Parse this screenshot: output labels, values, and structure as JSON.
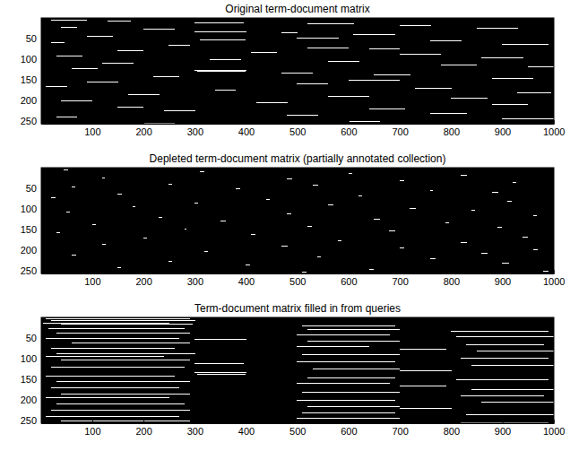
{
  "chart_data": [
    {
      "type": "heatmap",
      "title": "Original term-document matrix",
      "color": "#ffffff",
      "xlim": [
        0.5,
        1000.5
      ],
      "xticks": [
        100,
        200,
        300,
        400,
        500,
        600,
        700,
        800,
        900,
        1000
      ],
      "ylim": [
        0.5,
        256.5
      ],
      "yticks": [
        50,
        100,
        150,
        200,
        250
      ],
      "segments": [
        [
          5,
          20,
          90
        ],
        [
          8,
          130,
          175
        ],
        [
          12,
          300,
          395
        ],
        [
          14,
          520,
          610
        ],
        [
          18,
          700,
          760
        ],
        [
          22,
          40,
          70
        ],
        [
          25,
          850,
          930
        ],
        [
          28,
          200,
          260
        ],
        [
          33,
          300,
          400
        ],
        [
          36,
          470,
          500
        ],
        [
          40,
          610,
          690
        ],
        [
          44,
          90,
          140
        ],
        [
          48,
          500,
          580
        ],
        [
          52,
          310,
          398
        ],
        [
          55,
          760,
          820
        ],
        [
          60,
          20,
          45
        ],
        [
          63,
          900,
          990
        ],
        [
          67,
          250,
          290
        ],
        [
          72,
          520,
          600
        ],
        [
          75,
          640,
          700
        ],
        [
          80,
          150,
          200
        ],
        [
          84,
          410,
          460
        ],
        [
          88,
          700,
          780
        ],
        [
          92,
          30,
          80
        ],
        [
          96,
          860,
          940
        ],
        [
          101,
          330,
          390
        ],
        [
          105,
          560,
          620
        ],
        [
          110,
          120,
          180
        ],
        [
          114,
          780,
          850
        ],
        [
          118,
          950,
          1000
        ],
        [
          122,
          60,
          110
        ],
        [
          126,
          300,
          400
        ],
        [
          130,
          305,
          398
        ],
        [
          134,
          470,
          530
        ],
        [
          138,
          650,
          720
        ],
        [
          142,
          220,
          270
        ],
        [
          146,
          880,
          960
        ],
        [
          150,
          600,
          700
        ],
        [
          155,
          90,
          150
        ],
        [
          160,
          500,
          560
        ],
        [
          165,
          10,
          50
        ],
        [
          170,
          730,
          800
        ],
        [
          175,
          340,
          380
        ],
        [
          180,
          930,
          995
        ],
        [
          185,
          170,
          230
        ],
        [
          190,
          560,
          640
        ],
        [
          195,
          800,
          870
        ],
        [
          200,
          40,
          100
        ],
        [
          205,
          420,
          480
        ],
        [
          210,
          880,
          950
        ],
        [
          215,
          150,
          200
        ],
        [
          220,
          640,
          710
        ],
        [
          225,
          240,
          300
        ],
        [
          230,
          760,
          830
        ],
        [
          235,
          480,
          540
        ],
        [
          240,
          30,
          70
        ],
        [
          245,
          900,
          1000
        ],
        [
          250,
          600,
          660
        ],
        [
          254,
          200,
          260
        ]
      ]
    },
    {
      "type": "heatmap",
      "title": "Depleted term-document matrix (partially annotated collection)",
      "color": "#ffffff",
      "xlim": [
        0.5,
        1000.5
      ],
      "xticks": [
        100,
        200,
        300,
        400,
        500,
        600,
        700,
        800,
        900,
        1000
      ],
      "ylim": [
        0.5,
        256.5
      ],
      "yticks": [
        50,
        100,
        150,
        200,
        250
      ],
      "segments": [
        [
          6,
          45,
          52
        ],
        [
          10,
          310,
          318
        ],
        [
          15,
          600,
          606
        ],
        [
          19,
          820,
          830
        ],
        [
          24,
          120,
          124
        ],
        [
          27,
          480,
          490
        ],
        [
          31,
          700,
          708
        ],
        [
          35,
          920,
          926
        ],
        [
          39,
          250,
          256
        ],
        [
          43,
          530,
          540
        ],
        [
          47,
          60,
          66
        ],
        [
          51,
          380,
          388
        ],
        [
          56,
          760,
          764
        ],
        [
          59,
          880,
          892
        ],
        [
          64,
          150,
          158
        ],
        [
          68,
          620,
          626
        ],
        [
          73,
          20,
          28
        ],
        [
          77,
          440,
          446
        ],
        [
          81,
          910,
          918
        ],
        [
          86,
          300,
          306
        ],
        [
          90,
          560,
          570
        ],
        [
          95,
          180,
          184
        ],
        [
          99,
          720,
          730
        ],
        [
          103,
          840,
          846
        ],
        [
          108,
          50,
          56
        ],
        [
          112,
          480,
          488
        ],
        [
          116,
          960,
          966
        ],
        [
          121,
          230,
          236
        ],
        [
          125,
          650,
          660
        ],
        [
          129,
          350,
          360
        ],
        [
          133,
          790,
          796
        ],
        [
          137,
          100,
          106
        ],
        [
          141,
          520,
          528
        ],
        [
          145,
          890,
          898
        ],
        [
          149,
          280,
          284
        ],
        [
          153,
          680,
          690
        ],
        [
          158,
          30,
          36
        ],
        [
          162,
          410,
          418
        ],
        [
          167,
          940,
          950
        ],
        [
          171,
          200,
          206
        ],
        [
          176,
          580,
          586
        ],
        [
          181,
          820,
          830
        ],
        [
          186,
          120,
          126
        ],
        [
          190,
          470,
          480
        ],
        [
          194,
          700,
          708
        ],
        [
          199,
          960,
          968
        ],
        [
          203,
          320,
          326
        ],
        [
          207,
          860,
          870
        ],
        [
          212,
          60,
          68
        ],
        [
          216,
          540,
          546
        ],
        [
          221,
          760,
          770
        ],
        [
          226,
          250,
          256
        ],
        [
          231,
          900,
          912
        ],
        [
          236,
          400,
          408
        ],
        [
          241,
          150,
          156
        ],
        [
          246,
          640,
          648
        ],
        [
          250,
          980,
          990
        ],
        [
          253,
          510,
          518
        ]
      ]
    },
    {
      "type": "heatmap",
      "title": "Term-document matrix filled in from queries",
      "color": "#ffffff",
      "xlim": [
        0.5,
        1000.5
      ],
      "xticks": [
        100,
        200,
        300,
        400,
        500,
        600,
        700,
        800,
        900,
        1000
      ],
      "ylim": [
        0.5,
        256.5
      ],
      "yticks": [
        50,
        100,
        150,
        200,
        250
      ],
      "segments": [
        [
          4,
          10,
          290
        ],
        [
          8,
          20,
          300
        ],
        [
          13,
          5,
          250
        ],
        [
          17,
          40,
          295
        ],
        [
          21,
          510,
          690
        ],
        [
          26,
          15,
          280
        ],
        [
          30,
          520,
          700
        ],
        [
          34,
          800,
          990
        ],
        [
          38,
          30,
          290
        ],
        [
          42,
          500,
          680
        ],
        [
          46,
          810,
          1000
        ],
        [
          50,
          10,
          270
        ],
        [
          54,
          300,
          400
        ],
        [
          58,
          520,
          700
        ],
        [
          62,
          60,
          290
        ],
        [
          66,
          830,
          980
        ],
        [
          70,
          500,
          640
        ],
        [
          74,
          20,
          260
        ],
        [
          78,
          700,
          790
        ],
        [
          82,
          850,
          1000
        ],
        [
          87,
          30,
          300
        ],
        [
          91,
          510,
          700
        ],
        [
          95,
          10,
          240
        ],
        [
          99,
          820,
          990
        ],
        [
          103,
          40,
          290
        ],
        [
          107,
          500,
          690
        ],
        [
          111,
          300,
          395
        ],
        [
          115,
          840,
          1000
        ],
        [
          120,
          20,
          280
        ],
        [
          124,
          530,
          700
        ],
        [
          128,
          700,
          800
        ],
        [
          133,
          300,
          400
        ],
        [
          137,
          305,
          398
        ],
        [
          141,
          10,
          260
        ],
        [
          146,
          520,
          690
        ],
        [
          150,
          810,
          990
        ],
        [
          155,
          30,
          290
        ],
        [
          160,
          500,
          680
        ],
        [
          165,
          700,
          790
        ],
        [
          170,
          20,
          270
        ],
        [
          175,
          840,
          1000
        ],
        [
          180,
          510,
          700
        ],
        [
          185,
          40,
          290
        ],
        [
          190,
          820,
          980
        ],
        [
          195,
          10,
          250
        ],
        [
          200,
          500,
          690
        ],
        [
          205,
          860,
          1000
        ],
        [
          210,
          30,
          280
        ],
        [
          215,
          520,
          700
        ],
        [
          220,
          700,
          800
        ],
        [
          225,
          20,
          290
        ],
        [
          230,
          510,
          690
        ],
        [
          235,
          830,
          1000
        ],
        [
          240,
          10,
          270
        ],
        [
          245,
          500,
          700
        ],
        [
          250,
          40,
          290
        ],
        [
          254,
          820,
          990
        ]
      ]
    }
  ]
}
